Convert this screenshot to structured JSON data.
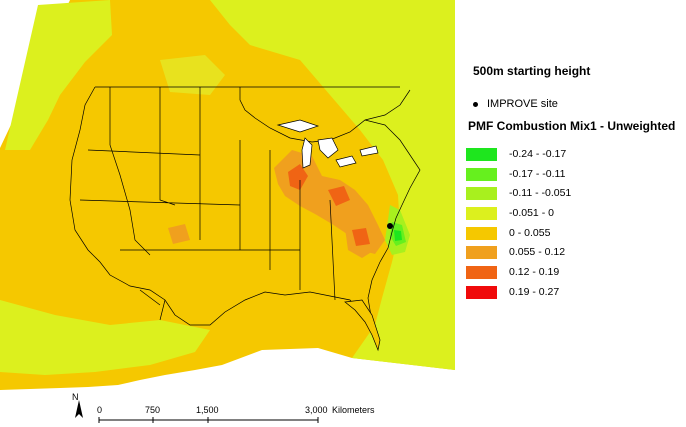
{
  "map": {
    "subtitle": "500m starting height",
    "site_label": "IMPROVE site",
    "legend_title": "PMF Combustion Mix1 - Unweighted",
    "legend": [
      {
        "label": "-0.24 - -0.17",
        "color": "#1ee61e"
      },
      {
        "label": "-0.17 - -0.11",
        "color": "#66f01e"
      },
      {
        "label": "-0.11 - -0.051",
        "color": "#a8f01e"
      },
      {
        "label": "-0.051 - 0",
        "color": "#dcf01e"
      },
      {
        "label": "0 - 0.055",
        "color": "#f5c800"
      },
      {
        "label": "0.055 - 0.12",
        "color": "#f0a01e"
      },
      {
        "label": "0.12 - 0.19",
        "color": "#f06414"
      },
      {
        "label": "0.19 - 0.27",
        "color": "#f00a0a"
      }
    ],
    "scale_ticks": [
      "0",
      "750",
      "1,500",
      "3,000"
    ],
    "scale_unit": "Kilometers",
    "north_label": "N"
  }
}
